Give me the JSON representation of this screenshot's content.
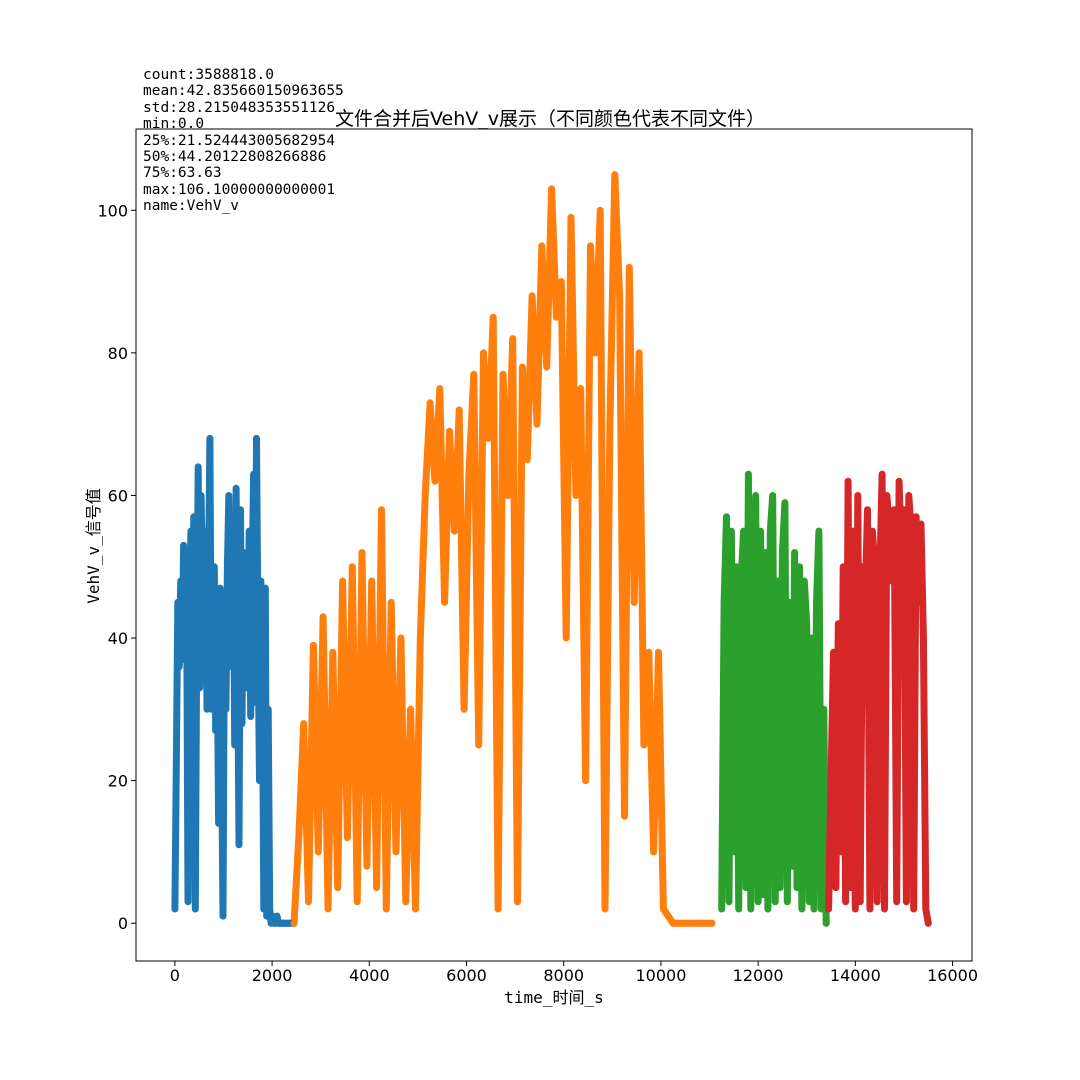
{
  "chart_data": {
    "type": "line",
    "title": "文件合并后VehV_v展示（不同颜色代表不同文件）",
    "xlabel": "time_时间_s",
    "ylabel": "VehV_v_信号值",
    "xlim": [
      -800,
      16400
    ],
    "ylim": [
      -5.3,
      111.4
    ],
    "xticks": [
      0,
      2000,
      4000,
      6000,
      8000,
      10000,
      12000,
      14000,
      16000
    ],
    "yticks": [
      0,
      20,
      40,
      60,
      80,
      100
    ],
    "grid": false,
    "stats_text": [
      "count:3588818.0",
      "mean:42.835660150963655",
      "std:28.215048353551126",
      "min:0.0",
      "25%:21.524443005682954",
      "50%:44.20122808266886",
      "75%:63.63",
      "max:106.10000000000001",
      "name:VehV_v"
    ],
    "series": [
      {
        "color": "#1f77b4",
        "x_range": [
          0,
          2450
        ],
        "x": [
          0,
          30,
          60,
          90,
          120,
          150,
          180,
          210,
          240,
          270,
          300,
          330,
          360,
          390,
          420,
          450,
          480,
          510,
          540,
          570,
          600,
          630,
          660,
          690,
          720,
          750,
          780,
          810,
          840,
          870,
          900,
          930,
          960,
          990,
          1020,
          1050,
          1080,
          1110,
          1140,
          1170,
          1200,
          1230,
          1260,
          1290,
          1320,
          1350,
          1380,
          1410,
          1440,
          1470,
          1500,
          1530,
          1560,
          1590,
          1620,
          1650,
          1680,
          1710,
          1740,
          1770,
          1800,
          1830,
          1860,
          1890,
          1920,
          1950,
          1980,
          2010,
          2040,
          2070,
          2100,
          2130,
          2160,
          2190,
          2220,
          2250,
          2280,
          2310,
          2340,
          2370,
          2400,
          2450
        ],
        "values": [
          2,
          22,
          45,
          36,
          48,
          37,
          53,
          39,
          50,
          3,
          40,
          55,
          36,
          57,
          2,
          41,
          64,
          33,
          60,
          48,
          36,
          55,
          30,
          47,
          68,
          30,
          42,
          50,
          27,
          38,
          14,
          47,
          25,
          1,
          45,
          30,
          50,
          60,
          36,
          40,
          56,
          25,
          61,
          38,
          11,
          58,
          28,
          52,
          45,
          33,
          37,
          55,
          29,
          49,
          63,
          31,
          68,
          40,
          20,
          48,
          35,
          2,
          47,
          1,
          30,
          2,
          0,
          1,
          0,
          0,
          1,
          0,
          0,
          0,
          0,
          0,
          0,
          0,
          0,
          0,
          0,
          0
        ]
      },
      {
        "color": "#ff7f0e",
        "x_range": [
          2400,
          11100
        ],
        "x": [
          2450,
          2550,
          2650,
          2750,
          2850,
          2950,
          3050,
          3150,
          3250,
          3350,
          3450,
          3550,
          3650,
          3750,
          3850,
          3950,
          4050,
          4150,
          4250,
          4350,
          4450,
          4550,
          4650,
          4750,
          4850,
          4950,
          5050,
          5150,
          5250,
          5350,
          5450,
          5550,
          5650,
          5750,
          5850,
          5950,
          6050,
          6150,
          6250,
          6350,
          6450,
          6550,
          6650,
          6750,
          6850,
          6950,
          7050,
          7150,
          7250,
          7350,
          7450,
          7550,
          7650,
          7750,
          7850,
          7950,
          8050,
          8150,
          8250,
          8350,
          8450,
          8550,
          8650,
          8750,
          8850,
          8950,
          9050,
          9150,
          9250,
          9350,
          9450,
          9550,
          9650,
          9750,
          9850,
          9950,
          10050,
          10150,
          10250,
          10350,
          10450,
          10550,
          10650,
          10750,
          10850,
          10950,
          11050
        ],
        "values": [
          0,
          12,
          28,
          3,
          39,
          10,
          43,
          2,
          38,
          5,
          48,
          12,
          50,
          3,
          52,
          8,
          48,
          5,
          58,
          2,
          45,
          10,
          40,
          3,
          30,
          2,
          40,
          60,
          73,
          62,
          75,
          45,
          69,
          55,
          72,
          30,
          63,
          77,
          25,
          80,
          68,
          85,
          2,
          77,
          60,
          82,
          3,
          78,
          65,
          88,
          70,
          95,
          78,
          103,
          85,
          90,
          40,
          99,
          60,
          75,
          20,
          95,
          80,
          100,
          2,
          70,
          105,
          88,
          15,
          92,
          45,
          80,
          25,
          38,
          10,
          38,
          2,
          1,
          0,
          0,
          0,
          0,
          0,
          0,
          0,
          0,
          0
        ]
      },
      {
        "color": "#2ca02c",
        "x_range": [
          11250,
          13400
        ],
        "x": [
          11250,
          11300,
          11350,
          11400,
          11450,
          11500,
          11550,
          11600,
          11650,
          11700,
          11750,
          11800,
          11850,
          11900,
          11950,
          12000,
          12050,
          12100,
          12150,
          12200,
          12250,
          12300,
          12350,
          12400,
          12450,
          12500,
          12550,
          12600,
          12650,
          12700,
          12750,
          12800,
          12850,
          12900,
          12950,
          13000,
          13050,
          13100,
          13150,
          13200,
          13250,
          13300,
          13350,
          13400
        ],
        "values": [
          2,
          45,
          57,
          3,
          55,
          10,
          50,
          2,
          48,
          55,
          5,
          63,
          2,
          53,
          60,
          3,
          55,
          4,
          52,
          2,
          55,
          60,
          3,
          48,
          5,
          52,
          59,
          3,
          45,
          8,
          52,
          5,
          50,
          2,
          48,
          42,
          3,
          40,
          2,
          45,
          55,
          2,
          30,
          0
        ]
      },
      {
        "color": "#d62728",
        "x_range": [
          13400,
          15500
        ],
        "x": [
          13450,
          13500,
          13550,
          13600,
          13650,
          13700,
          13750,
          13800,
          13850,
          13900,
          13950,
          14000,
          14050,
          14100,
          14150,
          14200,
          14250,
          14300,
          14350,
          14400,
          14450,
          14500,
          14550,
          14600,
          14650,
          14700,
          14750,
          14800,
          14850,
          14900,
          14950,
          15000,
          15050,
          15100,
          15150,
          15200,
          15250,
          15300,
          15350,
          15400,
          15450,
          15500
        ],
        "values": [
          2,
          20,
          38,
          5,
          42,
          10,
          50,
          3,
          62,
          5,
          55,
          2,
          60,
          3,
          50,
          45,
          58,
          2,
          55,
          50,
          3,
          48,
          63,
          2,
          60,
          55,
          48,
          58,
          3,
          62,
          50,
          58,
          3,
          60,
          55,
          2,
          57,
          45,
          56,
          40,
          2,
          0
        ]
      }
    ]
  }
}
